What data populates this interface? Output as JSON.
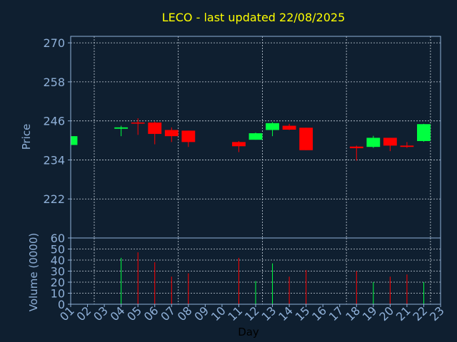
{
  "chart_data": {
    "type": "candlestick",
    "title": "LECO - last updated 22/08/2025",
    "xlabel": "Day",
    "price_panel": {
      "ylabel": "Price",
      "ylim": [
        210,
        272
      ],
      "yticks": [
        "270",
        "258",
        "246",
        "234",
        "222"
      ],
      "ytick_values": [
        270,
        258,
        246,
        234,
        222
      ],
      "grid": true
    },
    "volume_panel": {
      "ylabel": "Volume (0000)",
      "ylim": [
        0,
        60
      ],
      "yticks": [
        "60",
        "50",
        "40",
        "30",
        "20",
        "10",
        "0"
      ],
      "ytick_values": [
        60,
        50,
        40,
        30,
        20,
        10,
        0
      ],
      "grid": true
    },
    "categories": [
      "01",
      "02",
      "03",
      "04",
      "05",
      "06",
      "07",
      "08",
      "09",
      "10",
      "11",
      "12",
      "13",
      "14",
      "15",
      "16",
      "17",
      "18",
      "19",
      "20",
      "21",
      "22",
      "23"
    ],
    "candles": [
      {
        "day": "01",
        "open": 238.6,
        "close": 241.3,
        "high": 241.3,
        "low": 238.6,
        "volume": null
      },
      {
        "day": "04",
        "open": 243.6,
        "close": 244.0,
        "high": 244.5,
        "low": 241.3,
        "volume": 42
      },
      {
        "day": "05",
        "open": 245.5,
        "close": 245.2,
        "high": 246.8,
        "low": 241.7,
        "volume": 47
      },
      {
        "day": "06",
        "open": 245.5,
        "close": 242.0,
        "high": 245.8,
        "low": 238.8,
        "volume": 38
      },
      {
        "day": "07",
        "open": 243.2,
        "close": 241.3,
        "high": 244.0,
        "low": 239.5,
        "volume": 25
      },
      {
        "day": "08",
        "open": 243.0,
        "close": 239.5,
        "high": 243.0,
        "low": 238.0,
        "volume": 28
      },
      {
        "day": "11",
        "open": 239.5,
        "close": 238.2,
        "high": 239.8,
        "low": 236.4,
        "volume": 42
      },
      {
        "day": "12",
        "open": 240.2,
        "close": 242.2,
        "high": 242.4,
        "low": 240.2,
        "volume": 21
      },
      {
        "day": "13",
        "open": 243.2,
        "close": 245.3,
        "high": 245.6,
        "low": 241.3,
        "volume": 37
      },
      {
        "day": "14",
        "open": 244.5,
        "close": 243.3,
        "high": 245.1,
        "low": 243.2,
        "volume": 25
      },
      {
        "day": "15",
        "open": 243.9,
        "close": 237.0,
        "high": 243.9,
        "low": 237.0,
        "volume": 31
      },
      {
        "day": "18",
        "open": 238.1,
        "close": 237.6,
        "high": 238.4,
        "low": 233.8,
        "volume": 30
      },
      {
        "day": "19",
        "open": 238.0,
        "close": 240.8,
        "high": 241.4,
        "low": 237.7,
        "volume": 20
      },
      {
        "day": "20",
        "open": 240.8,
        "close": 238.4,
        "high": 240.8,
        "low": 236.7,
        "volume": 25
      },
      {
        "day": "21",
        "open": 238.4,
        "close": 238.0,
        "high": 239.5,
        "low": 237.7,
        "volume": 27
      },
      {
        "day": "22",
        "open": 239.8,
        "close": 245.0,
        "high": 245.1,
        "low": 239.6,
        "volume": 20
      }
    ],
    "colors": {
      "up": "#00ff40",
      "down": "#ff0000",
      "grid": "#c8d2dc",
      "frame": "#8fb0d8",
      "background": "#0f1f30",
      "title": "#ffff00",
      "text": "#8fb0d8"
    }
  }
}
